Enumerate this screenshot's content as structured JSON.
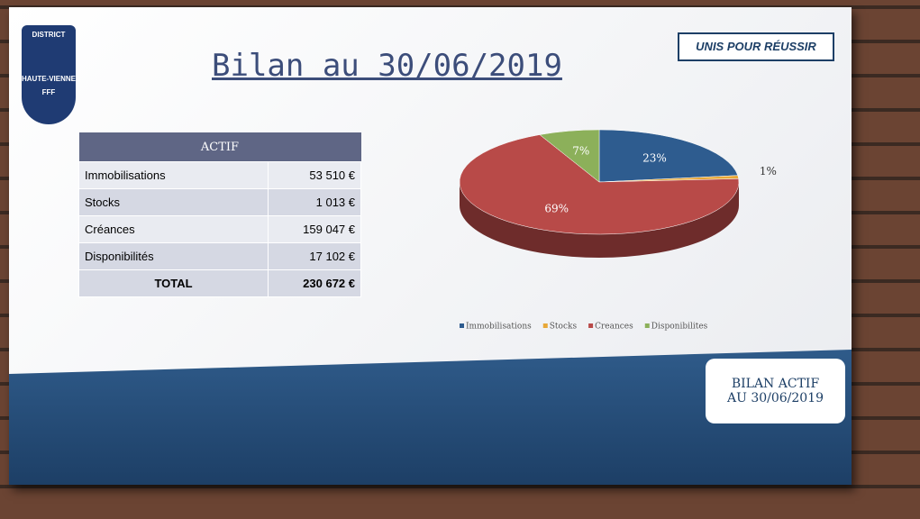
{
  "header": {
    "title": "Bilan au 30/06/2019",
    "logo_top": "DISTRICT",
    "logo_bottom": "HAUTE-VIENNE",
    "logo_fff": "FFF",
    "slogan": "UNIS POUR RÉUSSIR"
  },
  "table": {
    "header": "ACTIF",
    "rows": [
      [
        "Immobilisations",
        "53 510 €"
      ],
      [
        "Stocks",
        "1 013 €"
      ],
      [
        "Créances",
        "159 047 €"
      ],
      [
        "Disponibilités",
        "17 102 €"
      ]
    ],
    "total": [
      "TOTAL",
      "230 672 €"
    ]
  },
  "chart_data": {
    "type": "pie",
    "categories": [
      "Immobilisations",
      "Stocks",
      "Creances",
      "Disponibilites"
    ],
    "values": [
      23,
      1,
      69,
      7
    ],
    "value_labels": [
      "23%",
      "1%",
      "69%",
      "7%"
    ],
    "colors": [
      "#2e5c8f",
      "#e8a838",
      "#b84a48",
      "#8cb05a"
    ],
    "legend": "bottom"
  },
  "badge": [
    "BILAN ACTIF",
    "AU 30/06/2019"
  ]
}
